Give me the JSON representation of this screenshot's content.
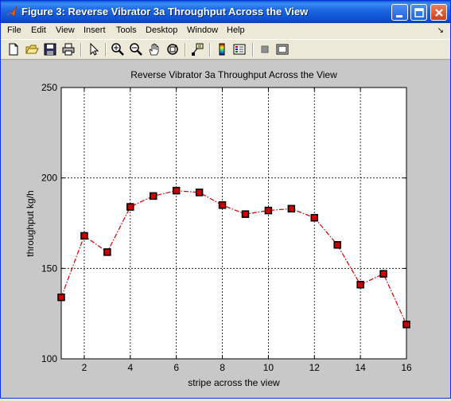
{
  "window": {
    "title": "Figure 3: Reverse Vibrator 3a Throughput Across the View"
  },
  "menu": {
    "items": [
      "File",
      "Edit",
      "View",
      "Insert",
      "Tools",
      "Desktop",
      "Window",
      "Help"
    ]
  },
  "toolbar": {
    "icons": [
      "new-file-icon",
      "open-folder-icon",
      "save-icon",
      "print-icon",
      "pointer-arrow-icon",
      "zoom-in-icon",
      "zoom-out-icon",
      "pan-hand-icon",
      "rotate-3d-icon",
      "data-cursor-icon",
      "colorbar-icon",
      "legend-icon",
      "hide-plot-tools-icon",
      "show-plot-tools-icon"
    ]
  },
  "colors": {
    "line": "#cc0000",
    "marker_fill": "#cc0000",
    "marker_edge": "#000000",
    "axes_background": "#ffffff",
    "figure_background": "#c8c8c8"
  },
  "chart_data": {
    "type": "line",
    "title": "Reverse Vibrator 3a Throughput Across the View",
    "xlabel": "stripe across the view",
    "ylabel": "throughput kg/h",
    "xlim": [
      1,
      16
    ],
    "ylim": [
      100,
      250
    ],
    "xticks": [
      2,
      4,
      6,
      8,
      10,
      12,
      14,
      16
    ],
    "yticks": [
      100,
      150,
      200,
      250
    ],
    "grid": true,
    "line_style": "dash-dot",
    "marker": "square",
    "x": [
      1,
      2,
      3,
      4,
      5,
      6,
      7,
      8,
      9,
      10,
      11,
      12,
      13,
      14,
      15,
      16
    ],
    "y": [
      134,
      168,
      159,
      184,
      190,
      193,
      192,
      185,
      180,
      182,
      183,
      178,
      163,
      141,
      147,
      119
    ]
  }
}
